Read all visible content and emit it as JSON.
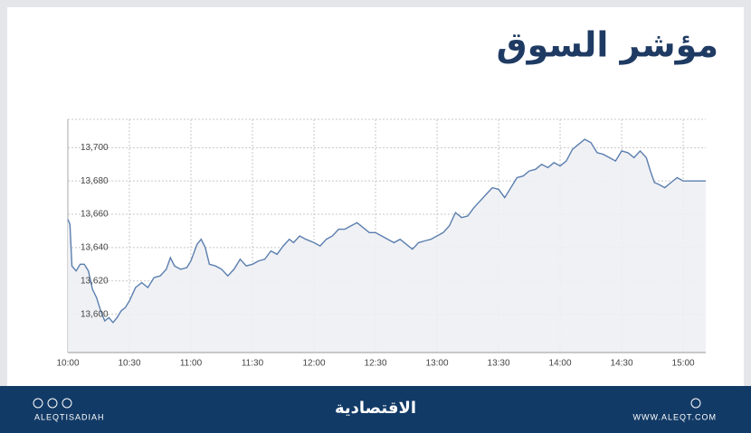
{
  "chart_data": {
    "type": "line",
    "title": "مؤشر السوق",
    "x": [
      "10:00",
      "10:01",
      "10:02",
      "10:04",
      "10:06",
      "10:08",
      "10:10",
      "10:12",
      "10:14",
      "10:16",
      "10:18",
      "10:20",
      "10:22",
      "10:24",
      "10:26",
      "10:28",
      "10:30",
      "10:33",
      "10:36",
      "10:39",
      "10:42",
      "10:45",
      "10:48",
      "10:50",
      "10:52",
      "10:55",
      "10:58",
      "11:00",
      "11:03",
      "11:05",
      "11:07",
      "11:09",
      "11:12",
      "11:15",
      "11:18",
      "11:21",
      "11:24",
      "11:27",
      "11:30",
      "11:33",
      "11:36",
      "11:39",
      "11:42",
      "11:45",
      "11:48",
      "11:50",
      "11:53",
      "11:56",
      "12:00",
      "12:03",
      "12:06",
      "12:09",
      "12:12",
      "12:15",
      "12:18",
      "12:21",
      "12:24",
      "12:27",
      "12:30",
      "12:33",
      "12:36",
      "12:39",
      "12:42",
      "12:45",
      "12:48",
      "12:51",
      "12:54",
      "12:57",
      "13:00",
      "13:03",
      "13:06",
      "13:09",
      "13:12",
      "13:15",
      "13:18",
      "13:21",
      "13:24",
      "13:27",
      "13:30",
      "13:33",
      "13:36",
      "13:39",
      "13:42",
      "13:45",
      "13:48",
      "13:51",
      "13:54",
      "13:57",
      "14:00",
      "14:03",
      "14:06",
      "14:09",
      "14:12",
      "14:15",
      "14:18",
      "14:21",
      "14:24",
      "14:27",
      "14:30",
      "14:33",
      "14:36",
      "14:39",
      "14:42",
      "14:44",
      "14:46",
      "14:48",
      "14:51",
      "14:54",
      "14:57",
      "15:00",
      "15:11"
    ],
    "series": [
      {
        "color": "#5b7fae",
        "values": [
          13657,
          13654,
          13629,
          13626,
          13630,
          13630,
          13626,
          13615,
          13610,
          13602,
          13596,
          13598,
          13595,
          13598,
          13602,
          13604,
          13608,
          13616,
          13619,
          13616,
          13622,
          13623,
          13627,
          13634,
          13629,
          13627,
          13628,
          13632,
          13642,
          13645,
          13640,
          13630,
          13629,
          13627,
          13623,
          13627,
          13633,
          13629,
          13630,
          13632,
          13633,
          13638,
          13636,
          13641,
          13645,
          13643,
          13647,
          13645,
          13643,
          13641,
          13645,
          13647,
          13651,
          13651,
          13653,
          13655,
          13652,
          13649,
          13649,
          13647,
          13645,
          13643,
          13645,
          13642,
          13639,
          13643,
          13644,
          13645,
          13647,
          13649,
          13653,
          13661,
          13658,
          13659,
          13664,
          13668,
          13672,
          13676,
          13675,
          13670,
          13676,
          13682,
          13683,
          13686,
          13687,
          13690,
          13688,
          13691,
          13689,
          13692,
          13699,
          13702,
          13705,
          13703,
          13697,
          13696,
          13694,
          13692,
          13698,
          13697,
          13694,
          13698,
          13694,
          13686,
          13679,
          13678,
          13676,
          13679,
          13682,
          13680,
          13680
        ]
      }
    ],
    "xlim": [
      "10:00",
      "15:11"
    ],
    "xticks": [
      "10:00",
      "10:30",
      "11:00",
      "11:30",
      "12:00",
      "12:30",
      "13:00",
      "13:30",
      "14:00",
      "14:30",
      "15:00"
    ],
    "ylim": [
      13577,
      13717
    ],
    "yticks": [
      {
        "value": 13600,
        "label": "13,600"
      },
      {
        "value": 13620,
        "label": "13,620"
      },
      {
        "value": 13640,
        "label": "13,640"
      },
      {
        "value": 13660,
        "label": "13,660"
      },
      {
        "value": 13680,
        "label": "13,680"
      },
      {
        "value": 13700,
        "label": "13,700"
      }
    ],
    "grid": true
  },
  "footer": {
    "brand": "الاقتصادية",
    "handle": "ALEQTISADIAH",
    "website": "WWW.ALEQT.COM"
  }
}
